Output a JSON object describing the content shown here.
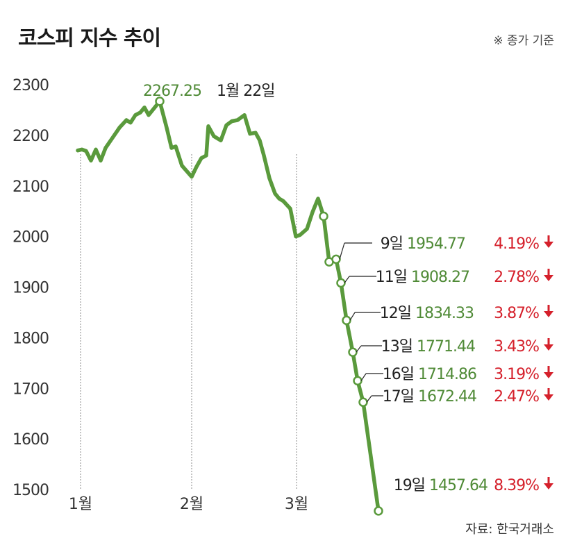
{
  "header": {
    "title": "코스피 지수 추이",
    "note": "※ 종가 기준",
    "source": "자료: 한국거래소"
  },
  "colors": {
    "line": "#5a9a3c",
    "value_text": "#4f8a36",
    "drop_text": "#d5202b"
  },
  "chart_data": {
    "type": "line",
    "title": "코스피 지수 추이",
    "ylim": [
      1500,
      2300
    ],
    "yticks": [
      2300,
      2200,
      2100,
      2000,
      1900,
      1800,
      1700,
      1600,
      1500
    ],
    "xticks": [
      "1월",
      "2월",
      "3월"
    ],
    "grid": false,
    "peak": {
      "value": "2267.25",
      "date": "1월 22일"
    },
    "annotations": [
      {
        "day": "9일",
        "value": "1954.77",
        "change": "4.19%",
        "v": 1954.77
      },
      {
        "day": "11일",
        "value": "1908.27",
        "change": "2.78%",
        "v": 1908.27
      },
      {
        "day": "12일",
        "value": "1834.33",
        "change": "3.87%",
        "v": 1834.33
      },
      {
        "day": "13일",
        "value": "1771.44",
        "change": "3.43%",
        "v": 1771.44
      },
      {
        "day": "16일",
        "value": "1714.86",
        "change": "3.19%",
        "v": 1714.86
      },
      {
        "day": "17일",
        "value": "1672.44",
        "change": "2.47%",
        "v": 1672.44
      },
      {
        "day": "19일",
        "value": "1457.64",
        "change": "8.39%",
        "v": 1457.64
      }
    ],
    "series": [
      {
        "values": [
          2170,
          2172,
          2169,
          2150,
          2172,
          2150,
          2175,
          2195,
          2215,
          2230,
          2225,
          2240,
          2245,
          2255,
          2240,
          2267.25,
          2215,
          2175,
          2178,
          2140,
          2118,
          2138,
          2155,
          2160,
          2218,
          2198,
          2190,
          2220,
          2228,
          2230,
          2240,
          2203,
          2205,
          2190,
          2160,
          2115,
          2085,
          2075,
          2070,
          2055,
          2000,
          2003,
          2015,
          2048,
          2075,
          2040,
          1950,
          1955,
          1908.27,
          1834.33,
          1771.44,
          1714.86,
          1672.44,
          1457.64
        ]
      }
    ]
  }
}
